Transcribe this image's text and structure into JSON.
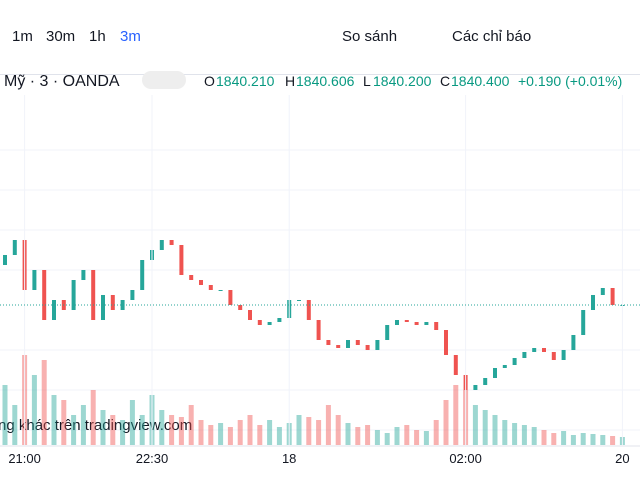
{
  "toolbar": {
    "intervals": [
      "1m",
      "30m",
      "1h",
      "3m"
    ],
    "compare": "So sánh",
    "indicators": "Các chỉ báo"
  },
  "header": {
    "symbol": "Mỹ · 3 · OANDA",
    "o_label": "O",
    "o": "1840.210",
    "h_label": "H",
    "h": "1840.606",
    "l_label": "L",
    "l": "1840.200",
    "c_label": "C",
    "c": "1840.400",
    "change": "+0.190 (+0.01%)"
  },
  "watermark": "ng khác trên tradingview.com",
  "chart_data": {
    "type": "candlestick",
    "x": [
      null,
      null,
      "21:00",
      null,
      null,
      null,
      null,
      null,
      null,
      null,
      null,
      null,
      null,
      null,
      null,
      "22:30",
      null,
      null,
      null,
      null,
      null,
      null,
      null,
      null,
      null,
      null,
      null,
      null,
      null,
      "18",
      null,
      null,
      null,
      null,
      null,
      null,
      null,
      null,
      null,
      null,
      null,
      null,
      null,
      null,
      null,
      null,
      null,
      "02:00",
      null,
      null,
      null,
      null,
      null,
      null,
      null,
      null,
      null,
      null,
      null,
      null,
      null,
      null,
      null,
      "20"
    ],
    "open": [
      1842.0,
      1842.4,
      1843.0,
      1841.0,
      1841.8,
      1839.8,
      1840.6,
      1840.2,
      1841.4,
      1841.8,
      1839.8,
      1840.8,
      1840.2,
      1840.6,
      1841.0,
      1842.2,
      1842.6,
      1843.0,
      1842.8,
      1841.6,
      1841.4,
      1841.2,
      1841.0,
      1841.0,
      1840.4,
      1840.2,
      1839.8,
      1839.6,
      1839.72,
      1839.88,
      1840.6,
      1840.6,
      1839.8,
      1839.0,
      1838.8,
      1838.68,
      1839.0,
      1838.8,
      1838.6,
      1839.0,
      1839.6,
      1839.8,
      1839.72,
      1839.6,
      1839.72,
      1839.4,
      1838.4,
      1837.6,
      1837.0,
      1837.2,
      1837.48,
      1837.88,
      1838.0,
      1838.28,
      1838.52,
      1838.68,
      1838.52,
      1838.2,
      1838.6,
      1839.2,
      1840.2,
      1840.8,
      1841.08,
      1840.4
    ],
    "close": [
      1842.4,
      1843.0,
      1841.0,
      1841.8,
      1839.8,
      1840.6,
      1840.2,
      1841.4,
      1841.8,
      1839.8,
      1840.8,
      1840.2,
      1840.6,
      1841.0,
      1842.2,
      1842.6,
      1843.0,
      1842.8,
      1841.6,
      1841.4,
      1841.2,
      1841.0,
      1841.0,
      1840.4,
      1840.2,
      1839.8,
      1839.6,
      1839.72,
      1839.88,
      1840.6,
      1840.6,
      1839.8,
      1839.0,
      1838.8,
      1838.68,
      1839.0,
      1838.8,
      1838.6,
      1839.0,
      1839.6,
      1839.8,
      1839.72,
      1839.6,
      1839.72,
      1839.4,
      1838.4,
      1837.6,
      1837.0,
      1837.2,
      1837.48,
      1837.88,
      1838.0,
      1838.28,
      1838.52,
      1838.68,
      1838.52,
      1838.2,
      1838.6,
      1839.2,
      1840.2,
      1840.8,
      1841.08,
      1840.4,
      1840.4
    ],
    "volume": [
      60,
      40,
      90,
      70,
      85,
      50,
      45,
      30,
      40,
      55,
      35,
      30,
      25,
      45,
      30,
      50,
      35,
      30,
      28,
      40,
      25,
      20,
      22,
      18,
      25,
      30,
      20,
      25,
      18,
      22,
      30,
      28,
      25,
      40,
      30,
      22,
      18,
      20,
      15,
      12,
      18,
      20,
      15,
      14,
      25,
      45,
      60,
      55,
      40,
      35,
      30,
      25,
      22,
      20,
      18,
      15,
      12,
      14,
      10,
      12,
      11,
      10,
      9,
      8
    ],
    "current": 1840.4,
    "ylim": [
      1834.8,
      1848.8
    ],
    "volume_ylim": [
      0,
      350
    ],
    "up_color": "#26a69a",
    "down_color": "#ef5350"
  }
}
